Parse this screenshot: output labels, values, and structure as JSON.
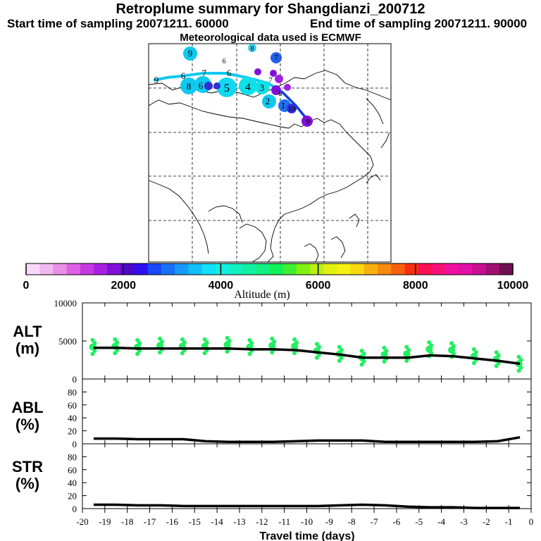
{
  "header": {
    "title": "Retroplume summary for Shangdianzi_200712",
    "start": "Start time of sampling 20071211. 60000",
    "end": "End time of sampling 20071211. 90000",
    "met": "Meteorological data used is ECMWF"
  },
  "colorbar": {
    "label": "Altitude (m)",
    "ticks": [
      "0",
      "2000",
      "4000",
      "6000",
      "8000",
      "10000"
    ],
    "colors": [
      "#f8d8f8",
      "#f0b8f0",
      "#e890e8",
      "#e060e8",
      "#c838e0",
      "#a820e0",
      "#8010d8",
      "#5008c8",
      "#3010f0",
      "#1848f8",
      "#1870f8",
      "#1898f8",
      "#10c0f8",
      "#10e0f8",
      "#10f0e0",
      "#10f0c0",
      "#10f0a0",
      "#10f080",
      "#10f058",
      "#40f030",
      "#80f010",
      "#b8f010",
      "#e0f010",
      "#f8f010",
      "#f8d810",
      "#f8b010",
      "#f88810",
      "#f86010",
      "#f83010",
      "#f81050",
      "#f81078",
      "#f010a0",
      "#e010a8",
      "#c81090",
      "#a01070",
      "#701050"
    ]
  },
  "map": {
    "labels": [
      "9",
      "6",
      "8",
      "7",
      "6",
      "9",
      "6",
      "8",
      "7",
      "6",
      "5",
      "4",
      "3",
      "2",
      "1",
      "10",
      "7",
      "8",
      "9"
    ]
  },
  "chart_data": [
    {
      "type": "line",
      "title": "ALT (m)",
      "ylabel": "ALT (m)",
      "ylim": [
        0,
        10000
      ],
      "yticks": [
        "0",
        "5000",
        "10000"
      ],
      "x": [
        -19.5,
        -18.5,
        -17.5,
        -16.5,
        -15.5,
        -14.5,
        -13.5,
        -12.5,
        -11.5,
        -10.5,
        -9.5,
        -8.5,
        -7.5,
        -6.5,
        -5.5,
        -4.5,
        -3.5,
        -2.5,
        -1.5,
        -0.5
      ],
      "values": [
        4100,
        4100,
        4000,
        4000,
        4000,
        4000,
        4000,
        3900,
        3900,
        3800,
        3500,
        3200,
        2800,
        2800,
        2800,
        3100,
        3000,
        2700,
        2400,
        2000
      ],
      "dots_center": [
        4200,
        4300,
        4200,
        4400,
        4300,
        4300,
        4500,
        4200,
        4400,
        4300,
        3700,
        3300,
        2800,
        3200,
        3300,
        3900,
        3800,
        3000,
        2600,
        2000
      ]
    },
    {
      "type": "line",
      "title": "ABL (%)",
      "ylabel": "ABL (%)",
      "ylim": [
        0,
        100
      ],
      "yticks": [
        "0",
        "20",
        "40",
        "60",
        "80"
      ],
      "x": [
        -19.5,
        -18.5,
        -17.5,
        -16.5,
        -15.5,
        -14.5,
        -13.5,
        -12.5,
        -11.5,
        -10.5,
        -9.5,
        -8.5,
        -7.5,
        -6.5,
        -5.5,
        -4.5,
        -3.5,
        -2.5,
        -1.5,
        -0.5
      ],
      "values": [
        8,
        8,
        7,
        7,
        7,
        4,
        3,
        3,
        3,
        4,
        5,
        5,
        5,
        3,
        3,
        3,
        3,
        3,
        4,
        10
      ]
    },
    {
      "type": "line",
      "title": "STR (%)",
      "ylabel": "STR (%)",
      "ylim": [
        0,
        100
      ],
      "yticks": [
        "0",
        "20",
        "40",
        "60",
        "80"
      ],
      "x": [
        -19.5,
        -18.5,
        -17.5,
        -16.5,
        -15.5,
        -14.5,
        -13.5,
        -12.5,
        -11.5,
        -10.5,
        -9.5,
        -8.5,
        -7.5,
        -6.5,
        -5.5,
        -4.5,
        -3.5,
        -2.5,
        -1.5,
        -0.5
      ],
      "values": [
        6,
        6,
        5,
        5,
        4,
        4,
        4,
        4,
        4,
        4,
        4,
        5,
        6,
        5,
        3,
        2,
        2,
        1,
        1,
        1
      ]
    }
  ],
  "xaxis": {
    "label": "Travel time (days)",
    "ticks": [
      "-20",
      "-19",
      "-18",
      "-17",
      "-16",
      "-15",
      "-14",
      "-13",
      "-12",
      "-11",
      "-10",
      "-9",
      "-8",
      "-7",
      "-6",
      "-5",
      "-4",
      "-3",
      "-2",
      "-1",
      "0"
    ],
    "xlim": [
      -20,
      0
    ]
  },
  "panel_labels": {
    "alt": [
      "ALT",
      "(m)"
    ],
    "abl": [
      "ABL",
      "(%)"
    ],
    "str": [
      "STR",
      "(%)"
    ]
  }
}
